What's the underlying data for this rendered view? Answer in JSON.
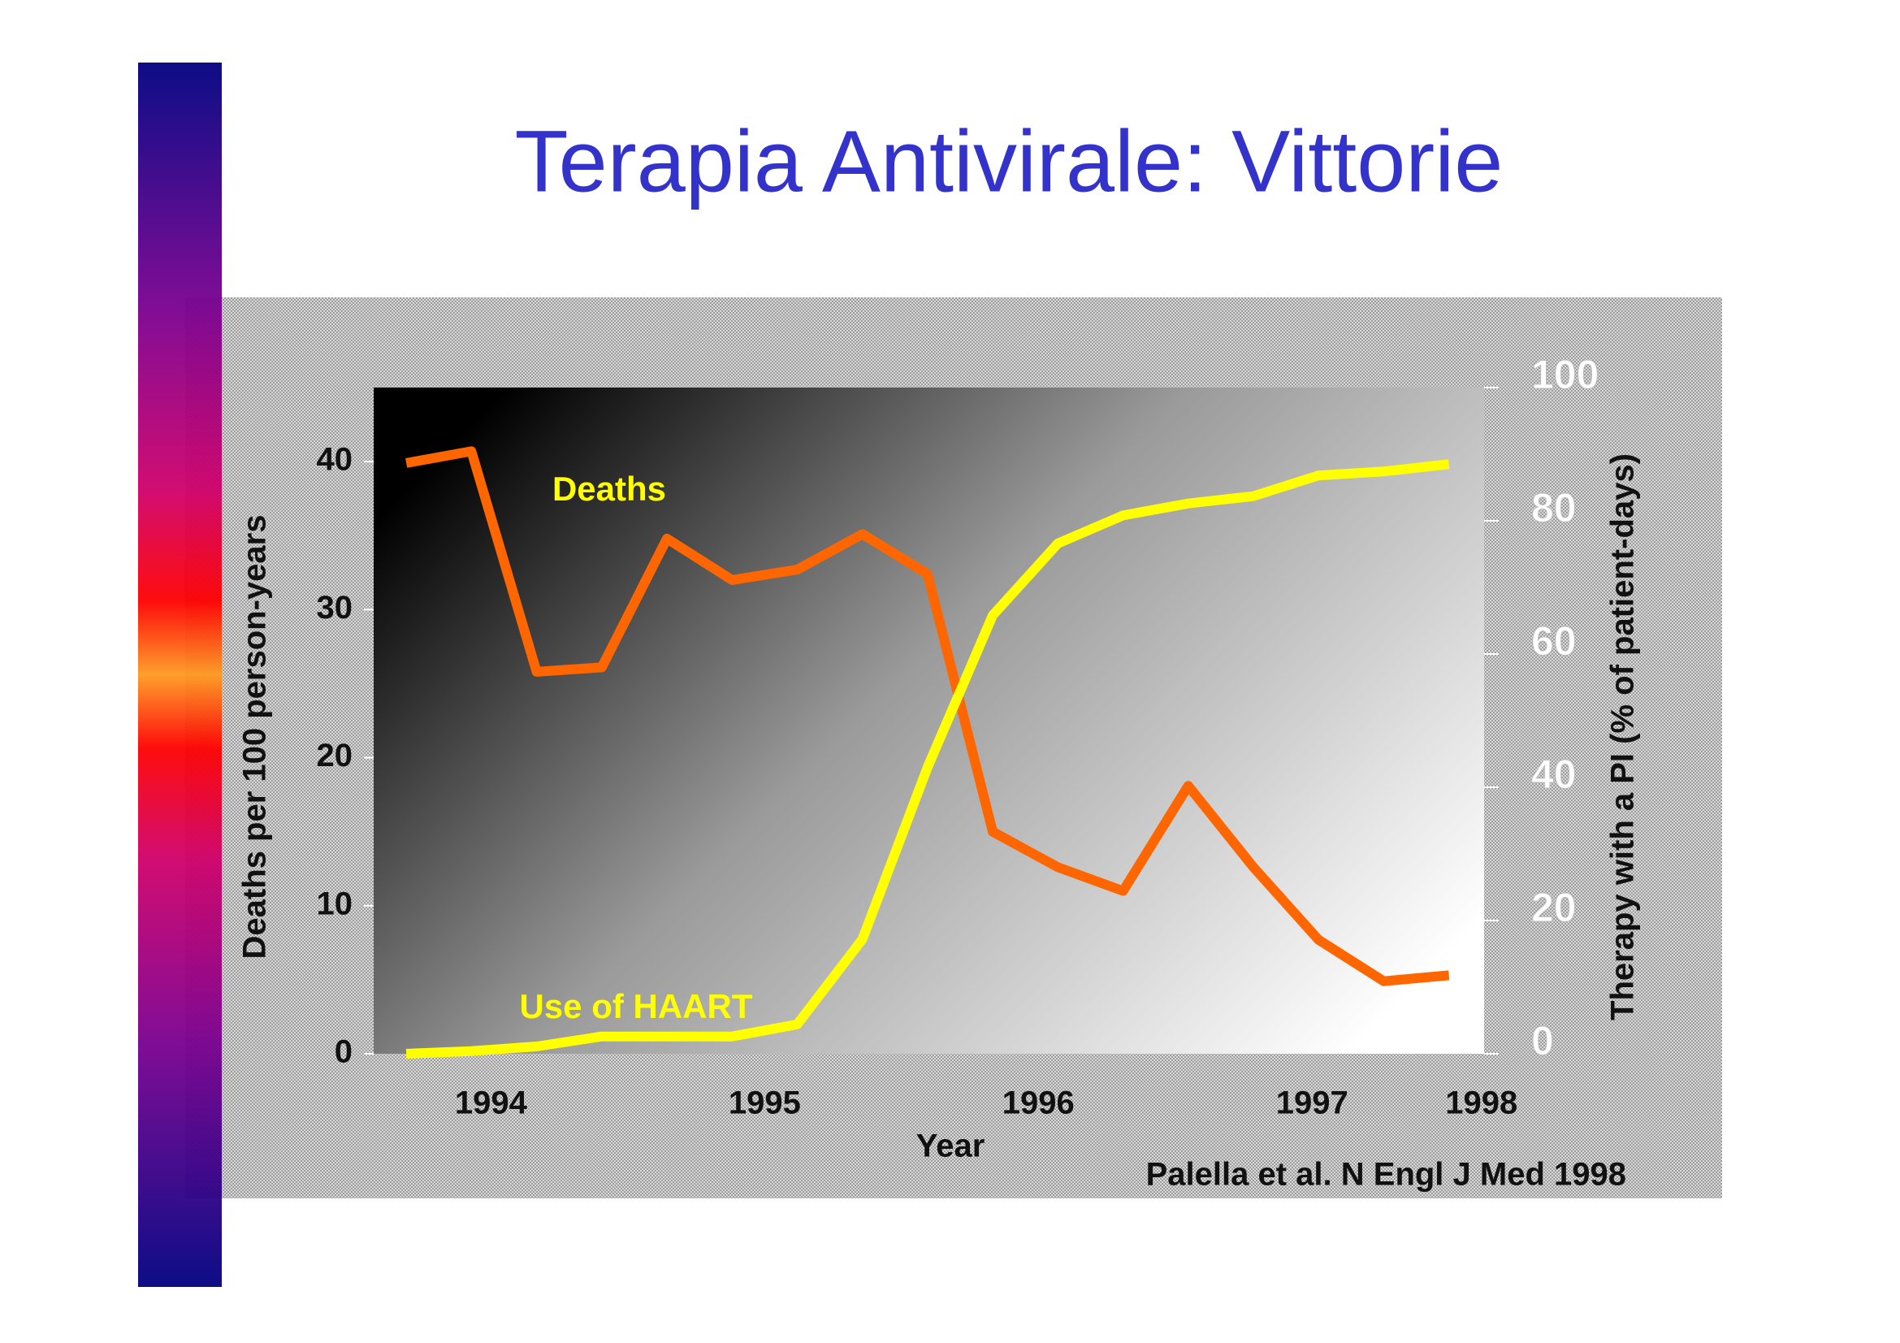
{
  "chart_data": {
    "type": "line",
    "title": "Terapia Antivirale:  Vittorie",
    "x_label": "Year",
    "y_label": "Deaths per 100 person-years",
    "y2_label": "Therapy with a PI (% of patient-days)",
    "source": "Palella et al. N Engl J Med 1998",
    "annotations": [
      "Deaths",
      "Use of HAART"
    ],
    "x": [
      1994.125,
      1994.375,
      1994.625,
      1994.875,
      1995.125,
      1995.375,
      1995.625,
      1995.875,
      1996.125,
      1996.375,
      1996.625,
      1996.875,
      1997.125,
      1997.375,
      1997.625,
      1997.875,
      1998.125
    ],
    "xlim": [
      1994,
      1998.26
    ],
    "xticks": [
      {
        "value": 1994.45,
        "label": "1994"
      },
      {
        "value": 1995.5,
        "label": "1995"
      },
      {
        "value": 1996.55,
        "label": "1996"
      },
      {
        "value": 1997.6,
        "label": "1997"
      },
      {
        "value": 1998.25,
        "label": "1998"
      }
    ],
    "ylim": [
      0,
      45
    ],
    "yticks": [
      0,
      10,
      20,
      30,
      40
    ],
    "y2lim": [
      0,
      100
    ],
    "y2ticks": [
      0,
      20,
      40,
      60,
      80,
      100
    ],
    "series": [
      {
        "name": "Deaths",
        "color": "#ff6600",
        "values": [
          39.9,
          40.7,
          25.8,
          26.1,
          34.8,
          32.0,
          32.7,
          35.1,
          32.4,
          15.0,
          12.6,
          11.0,
          18.1,
          12.6,
          7.7,
          4.9,
          5.3
        ]
      },
      {
        "name": "Use of HAART",
        "color": "#ffff00",
        "axis": "y2",
        "values": [
          0,
          0.4,
          1.1,
          2.6,
          2.6,
          2.6,
          4.4,
          17.2,
          43.0,
          65.8,
          76.6,
          80.8,
          82.6,
          83.7,
          86.8,
          87.4,
          88.5
        ]
      }
    ]
  }
}
